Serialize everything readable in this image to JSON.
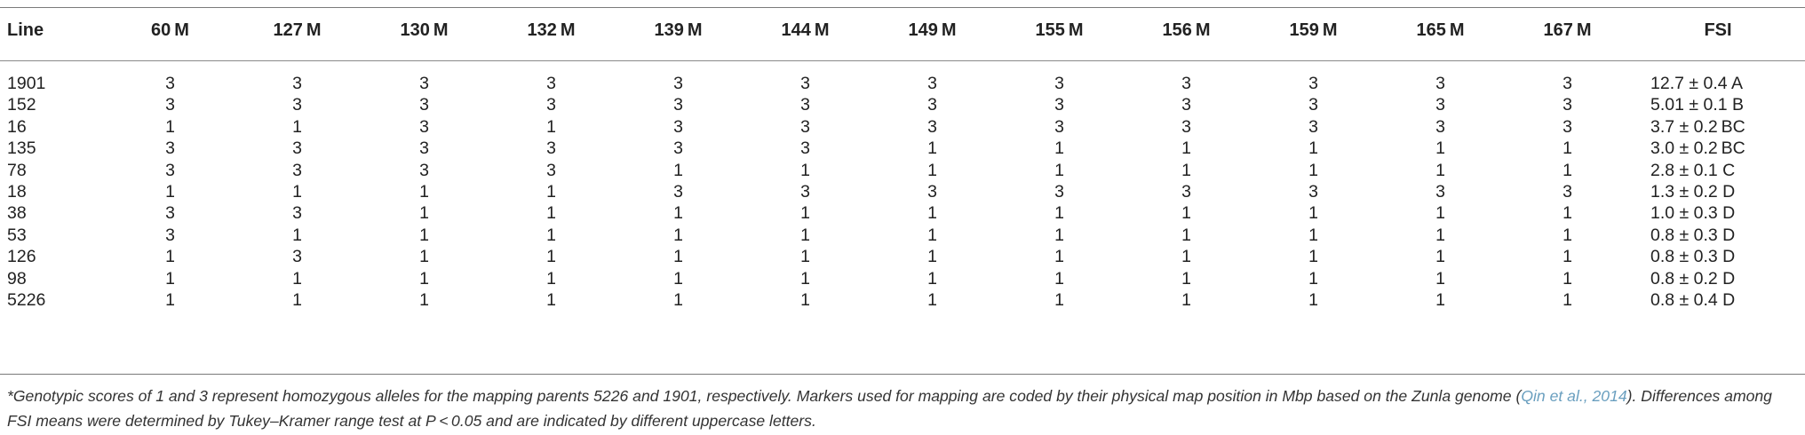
{
  "table": {
    "headers": [
      "Line",
      "60 M",
      "127 M",
      "130 M",
      "132 M",
      "139 M",
      "144 M",
      "149 M",
      "155 M",
      "156 M",
      "159 M",
      "165 M",
      "167 M",
      "FSI"
    ],
    "rows": [
      [
        "1901",
        "3",
        "3",
        "3",
        "3",
        "3",
        "3",
        "3",
        "3",
        "3",
        "3",
        "3",
        "3",
        "12.7 ± 0.4 A"
      ],
      [
        "152",
        "3",
        "3",
        "3",
        "3",
        "3",
        "3",
        "3",
        "3",
        "3",
        "3",
        "3",
        "3",
        "5.01 ± 0.1 B"
      ],
      [
        "16",
        "1",
        "1",
        "3",
        "1",
        "3",
        "3",
        "3",
        "3",
        "3",
        "3",
        "3",
        "3",
        "3.7 ± 0.2 BC"
      ],
      [
        "135",
        "3",
        "3",
        "3",
        "3",
        "3",
        "3",
        "1",
        "1",
        "1",
        "1",
        "1",
        "1",
        "3.0 ± 0.2 BC"
      ],
      [
        "78",
        "3",
        "3",
        "3",
        "3",
        "1",
        "1",
        "1",
        "1",
        "1",
        "1",
        "1",
        "1",
        "2.8 ± 0.1 C"
      ],
      [
        "18",
        "1",
        "1",
        "1",
        "1",
        "3",
        "3",
        "3",
        "3",
        "3",
        "3",
        "3",
        "3",
        "1.3 ± 0.2 D"
      ],
      [
        "38",
        "3",
        "3",
        "1",
        "1",
        "1",
        "1",
        "1",
        "1",
        "1",
        "1",
        "1",
        "1",
        "1.0 ± 0.3 D"
      ],
      [
        "53",
        "3",
        "1",
        "1",
        "1",
        "1",
        "1",
        "1",
        "1",
        "1",
        "1",
        "1",
        "1",
        "0.8 ± 0.3 D"
      ],
      [
        "126",
        "1",
        "3",
        "1",
        "1",
        "1",
        "1",
        "1",
        "1",
        "1",
        "1",
        "1",
        "1",
        "0.8 ± 0.3 D"
      ],
      [
        "98",
        "1",
        "1",
        "1",
        "1",
        "1",
        "1",
        "1",
        "1",
        "1",
        "1",
        "1",
        "1",
        "0.8 ± 0.2 D"
      ],
      [
        "5226",
        "1",
        "1",
        "1",
        "1",
        "1",
        "1",
        "1",
        "1",
        "1",
        "1",
        "1",
        "1",
        "0.8 ± 0.4 D"
      ]
    ]
  },
  "footnote": {
    "part1": "*Genotypic scores of 1 and 3 represent homozygous alleles for the mapping parents 5226 and 1901, respectively. Markers used for mapping are coded by their physical map position in Mbp based on the Zunla genome (",
    "citation": "Qin et al., 2014",
    "part2": "). Differences among FSI means were determined by Tukey–Kramer range test at P < 0.05 and are indicated by different uppercase letters."
  }
}
